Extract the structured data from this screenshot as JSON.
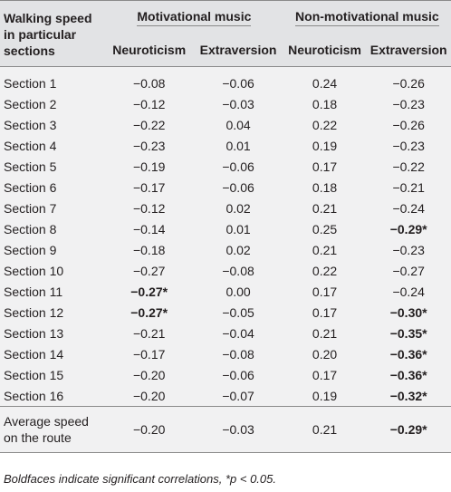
{
  "header": {
    "row_label": "Walking speed in particular sections",
    "group1": "Motivational music",
    "group2": "Non-motivational music",
    "sub1": "Neuroticism",
    "sub2": "Extraversion",
    "sub3": "Neuroticism",
    "sub4": "Extraversion"
  },
  "rows": [
    {
      "label": "Section 1",
      "v1": "−0.08",
      "v2": "−0.06",
      "v3": "0.24",
      "v4": "−0.26"
    },
    {
      "label": "Section 2",
      "v1": "−0.12",
      "v2": "−0.03",
      "v3": "0.18",
      "v4": "−0.23"
    },
    {
      "label": "Section 3",
      "v1": "−0.22",
      "v2": "0.04",
      "v3": "0.22",
      "v4": "−0.26"
    },
    {
      "label": "Section 4",
      "v1": "−0.23",
      "v2": "0.01",
      "v3": "0.19",
      "v4": "−0.23"
    },
    {
      "label": "Section 5",
      "v1": "−0.19",
      "v2": "−0.06",
      "v3": "0.17",
      "v4": "−0.22"
    },
    {
      "label": "Section 6",
      "v1": "−0.17",
      "v2": "−0.06",
      "v3": "0.18",
      "v4": "−0.21"
    },
    {
      "label": "Section 7",
      "v1": "−0.12",
      "v2": "0.02",
      "v3": "0.21",
      "v4": "−0.24"
    },
    {
      "label": "Section 8",
      "v1": "−0.14",
      "v2": "0.01",
      "v3": "0.25",
      "v4": "−0.29*",
      "v4_sig": true
    },
    {
      "label": "Section 9",
      "v1": "−0.18",
      "v2": "0.02",
      "v3": "0.21",
      "v4": "−0.23"
    },
    {
      "label": "Section 10",
      "v1": "−0.27",
      "v2": "−0.08",
      "v3": "0.22",
      "v4": "−0.27"
    },
    {
      "label": "Section 11",
      "v1": "−0.27*",
      "v1_sig": true,
      "v2": "0.00",
      "v3": "0.17",
      "v4": "−0.24"
    },
    {
      "label": "Section 12",
      "v1": "−0.27*",
      "v1_sig": true,
      "v2": "−0.05",
      "v3": "0.17",
      "v4": "−0.30*",
      "v4_sig": true
    },
    {
      "label": "Section 13",
      "v1": "−0.21",
      "v2": "−0.04",
      "v3": "0.21",
      "v4": "−0.35*",
      "v4_sig": true
    },
    {
      "label": "Section 14",
      "v1": "−0.17",
      "v2": "−0.08",
      "v3": "0.20",
      "v4": "−0.36*",
      "v4_sig": true
    },
    {
      "label": "Section 15",
      "v1": "−0.20",
      "v2": "−0.06",
      "v3": "0.17",
      "v4": "−0.36*",
      "v4_sig": true
    },
    {
      "label": "Section 16",
      "v1": "−0.20",
      "v2": "−0.07",
      "v3": "0.19",
      "v4": "−0.32*",
      "v4_sig": true
    }
  ],
  "average": {
    "label": "Average speed on the route",
    "v1": "−0.20",
    "v2": "−0.03",
    "v3": "0.21",
    "v4": "−0.29*",
    "v4_sig": true
  },
  "footnote": "Boldfaces indicate significant correlations, *p < 0.05."
}
